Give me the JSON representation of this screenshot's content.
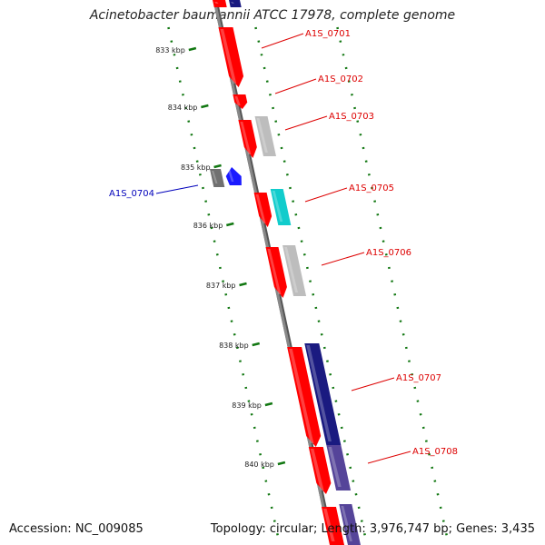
{
  "header": {
    "title": "Acinetobacter baumannii ATCC 17978, complete genome"
  },
  "footer": {
    "accession": "Accession: NC_009085",
    "summary": "Topology: circular; Length: 3,976,747 bp; Genes: 3,435"
  },
  "scale_ticks": [
    "833 kbp",
    "834 kbp",
    "835 kbp",
    "836 kbp",
    "837 kbp",
    "838 kbp",
    "839 kbp",
    "840 kbp"
  ],
  "genes": [
    {
      "name": "A1S_0701",
      "color": "#dd0000"
    },
    {
      "name": "A1S_0702",
      "color": "#dd0000"
    },
    {
      "name": "A1S_0703",
      "color": "#dd0000"
    },
    {
      "name": "A1S_0704",
      "color": "#0000bb"
    },
    {
      "name": "A1S_0705",
      "color": "#dd0000"
    },
    {
      "name": "A1S_0706",
      "color": "#dd0000"
    },
    {
      "name": "A1S_0707",
      "color": "#dd0000"
    },
    {
      "name": "A1S_0708",
      "color": "#dd0000"
    }
  ],
  "colors": {
    "backbone": "#888888",
    "cds_forward": "#ff0000",
    "cds_reverse": "#1a1aff",
    "blast_hit_grey": "#bdbdbd",
    "blast_hit_dark_grey": "#707070",
    "blast_hit_cyan": "#11cccc",
    "blast_hit_navy": "#1a1a80",
    "blast_hit_purple": "#554499",
    "gc_dots": "#117711"
  }
}
